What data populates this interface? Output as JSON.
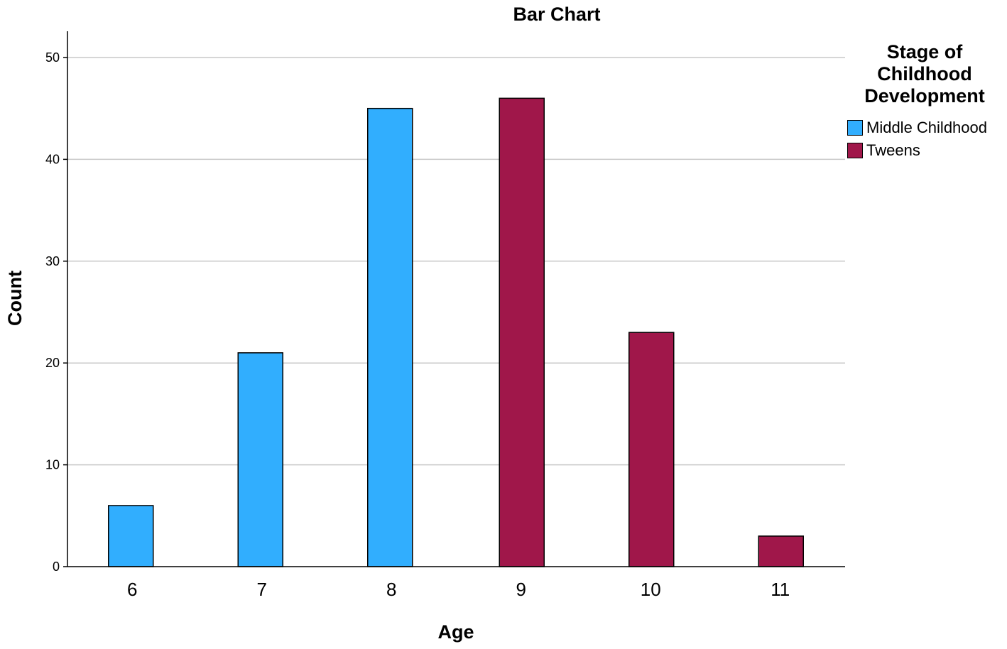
{
  "chart_data": {
    "type": "bar",
    "title": "Bar Chart",
    "xlabel": "Age",
    "ylabel": "Count",
    "categories": [
      "6",
      "7",
      "8",
      "9",
      "10",
      "11"
    ],
    "ylim": [
      0,
      50
    ],
    "yticks": [
      0,
      10,
      20,
      30,
      40,
      50
    ],
    "grid": true,
    "legend_position": "top-right",
    "legend_title_lines": [
      "Stage of",
      "Childhood",
      "Development"
    ],
    "series": [
      {
        "name": "Middle Childhood",
        "color": "#31aefe",
        "values": [
          6,
          21,
          45,
          null,
          null,
          null
        ]
      },
      {
        "name": "Tweens",
        "color": "#a0174a",
        "values": [
          null,
          null,
          null,
          46,
          23,
          3
        ]
      }
    ]
  }
}
